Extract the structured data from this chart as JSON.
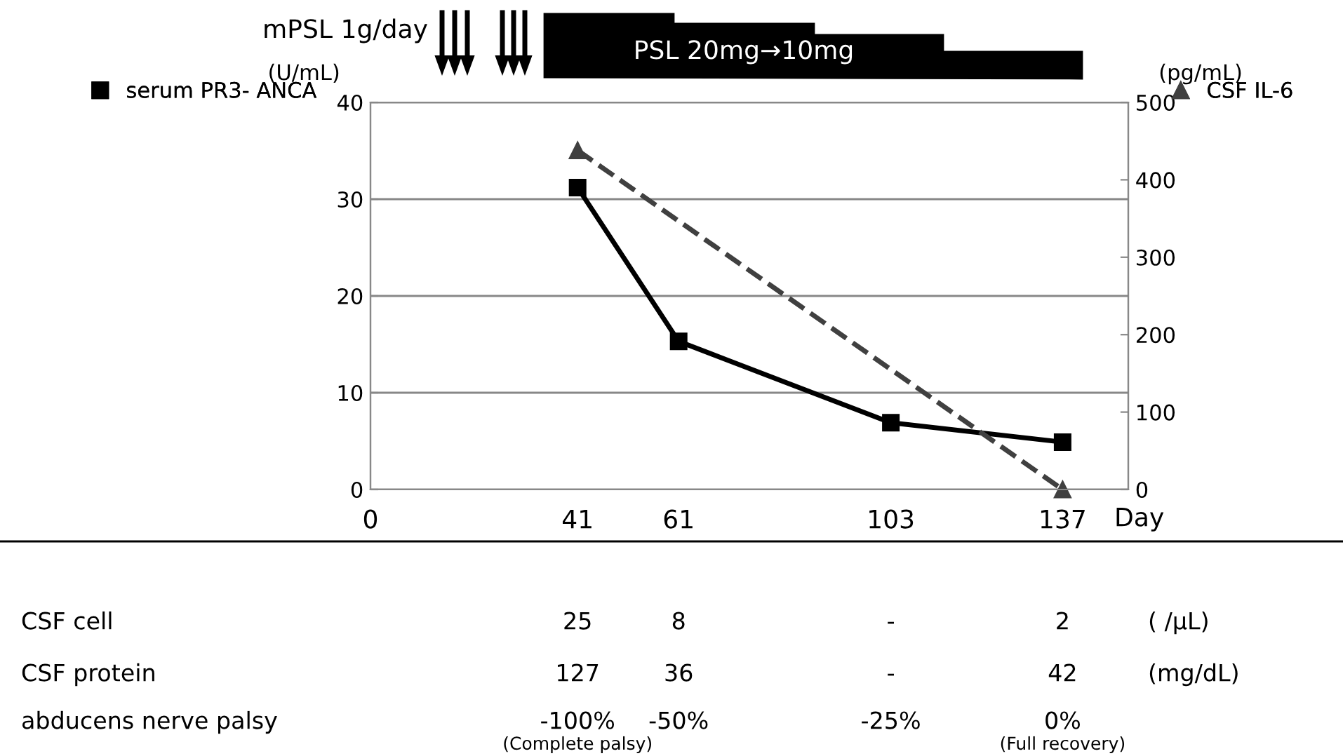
{
  "chart_data": {
    "type": "line",
    "xlabel": "Day",
    "ylabel": "(U/mL)",
    "y2label": "(pg/mL)",
    "xlim": [
      0,
      150
    ],
    "xticks": [
      0,
      41,
      61,
      103,
      137
    ],
    "ylim": [
      0,
      40
    ],
    "yticks": [
      0,
      10,
      20,
      30,
      40
    ],
    "y2lim": [
      0,
      500
    ],
    "y2ticks": [
      0,
      100,
      200,
      300,
      400,
      500
    ],
    "grid": "y",
    "legend": "top",
    "series": [
      {
        "name": "serum PR3- ANCA",
        "color": "#000000",
        "x": [
          41,
          61,
          103,
          137
        ],
        "values": [
          31.2,
          15.3,
          6.9,
          4.9
        ],
        "marker": "square",
        "line_style": "solid"
      },
      {
        "name": "CSF IL-6",
        "color": "#404040",
        "x": [
          41,
          137
        ],
        "values": [
          438,
          0
        ],
        "axis": "y2",
        "marker": "triangle",
        "line_style": "dashed"
      }
    ],
    "annotations": [
      "mPSL 1g/day",
      "PSL 20mg→10mg",
      "CSF cell",
      "25",
      "8",
      "-",
      "2",
      "( /µL)",
      "CSF protein",
      "127",
      "36",
      "-",
      "42",
      "(mg/dL)",
      "abducens nerve palsy",
      "-100%",
      "-50%",
      "-25%",
      "0%",
      "(Complete palsy)",
      "(Full recovery)"
    ]
  }
}
